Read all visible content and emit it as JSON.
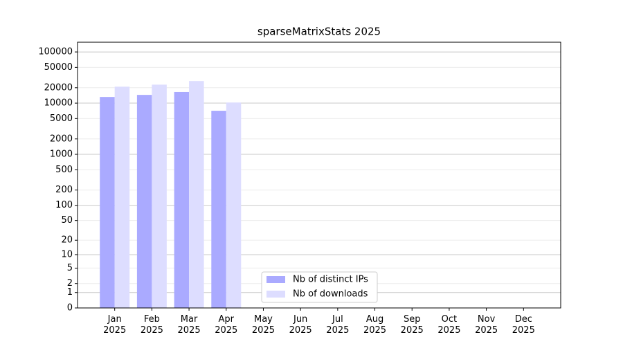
{
  "chart_data": {
    "type": "bar",
    "title": "sparseMatrixStats 2025",
    "categories": [
      "Jan\n2025",
      "Feb\n2025",
      "Mar\n2025",
      "Apr\n2025",
      "May\n2025",
      "Jun\n2025",
      "Jul\n2025",
      "Aug\n2025",
      "Sep\n2025",
      "Oct\n2025",
      "Nov\n2025",
      "Dec\n2025"
    ],
    "series": [
      {
        "name": "Nb of distinct IPs",
        "color": "#aaaaff",
        "values": [
          13200,
          14500,
          16500,
          7100,
          null,
          null,
          null,
          null,
          null,
          null,
          null,
          null
        ]
      },
      {
        "name": "Nb of downloads",
        "color": "#ddddff",
        "values": [
          21000,
          23000,
          27000,
          10300,
          null,
          null,
          null,
          null,
          null,
          null,
          null,
          null
        ]
      }
    ],
    "scale": "log1p",
    "ylim": [
      0,
      155000
    ],
    "yticks": [
      0,
      1,
      2,
      5,
      10,
      20,
      50,
      100,
      200,
      500,
      1000,
      2000,
      5000,
      10000,
      20000,
      50000,
      100000
    ],
    "grid": true,
    "legend": "lower center"
  }
}
